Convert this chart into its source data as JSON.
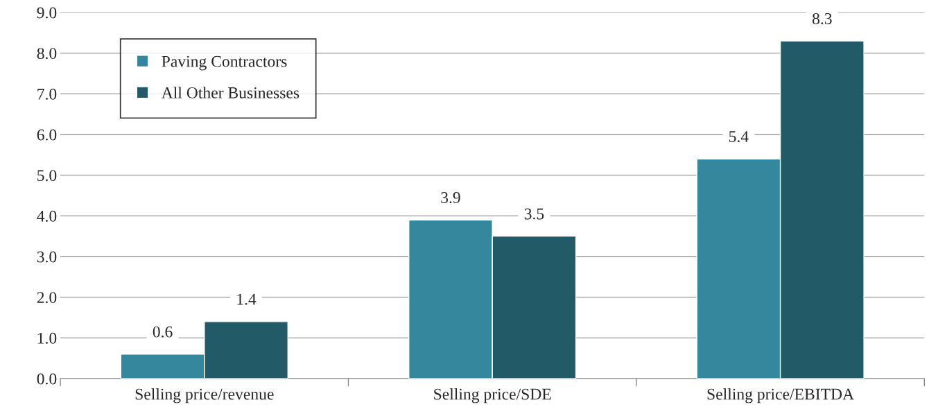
{
  "chart_data": {
    "type": "bar",
    "categories": [
      "Selling price/revenue",
      "Selling price/SDE",
      "Selling price/EBITDA"
    ],
    "series": [
      {
        "name": "Paving Contractors",
        "color": "#35879e",
        "values": [
          0.6,
          3.9,
          5.4
        ]
      },
      {
        "name": "All Other Businesses",
        "color": "#235a68",
        "values": [
          1.4,
          3.5,
          8.3
        ]
      }
    ],
    "ylim": [
      0,
      9
    ],
    "yticks": [
      {
        "value": 0,
        "label": "0.0"
      },
      {
        "value": 1,
        "label": "1.0"
      },
      {
        "value": 2,
        "label": "2.0"
      },
      {
        "value": 3,
        "label": "3.0"
      },
      {
        "value": 4,
        "label": "4.0"
      },
      {
        "value": 5,
        "label": "5.0"
      },
      {
        "value": 6,
        "label": "6.0"
      },
      {
        "value": 7,
        "label": "7.0"
      },
      {
        "value": 8,
        "label": "8.0"
      },
      {
        "value": 9,
        "label": "9.0"
      }
    ],
    "grid": "y",
    "legend": "top left",
    "data_labels": true
  }
}
